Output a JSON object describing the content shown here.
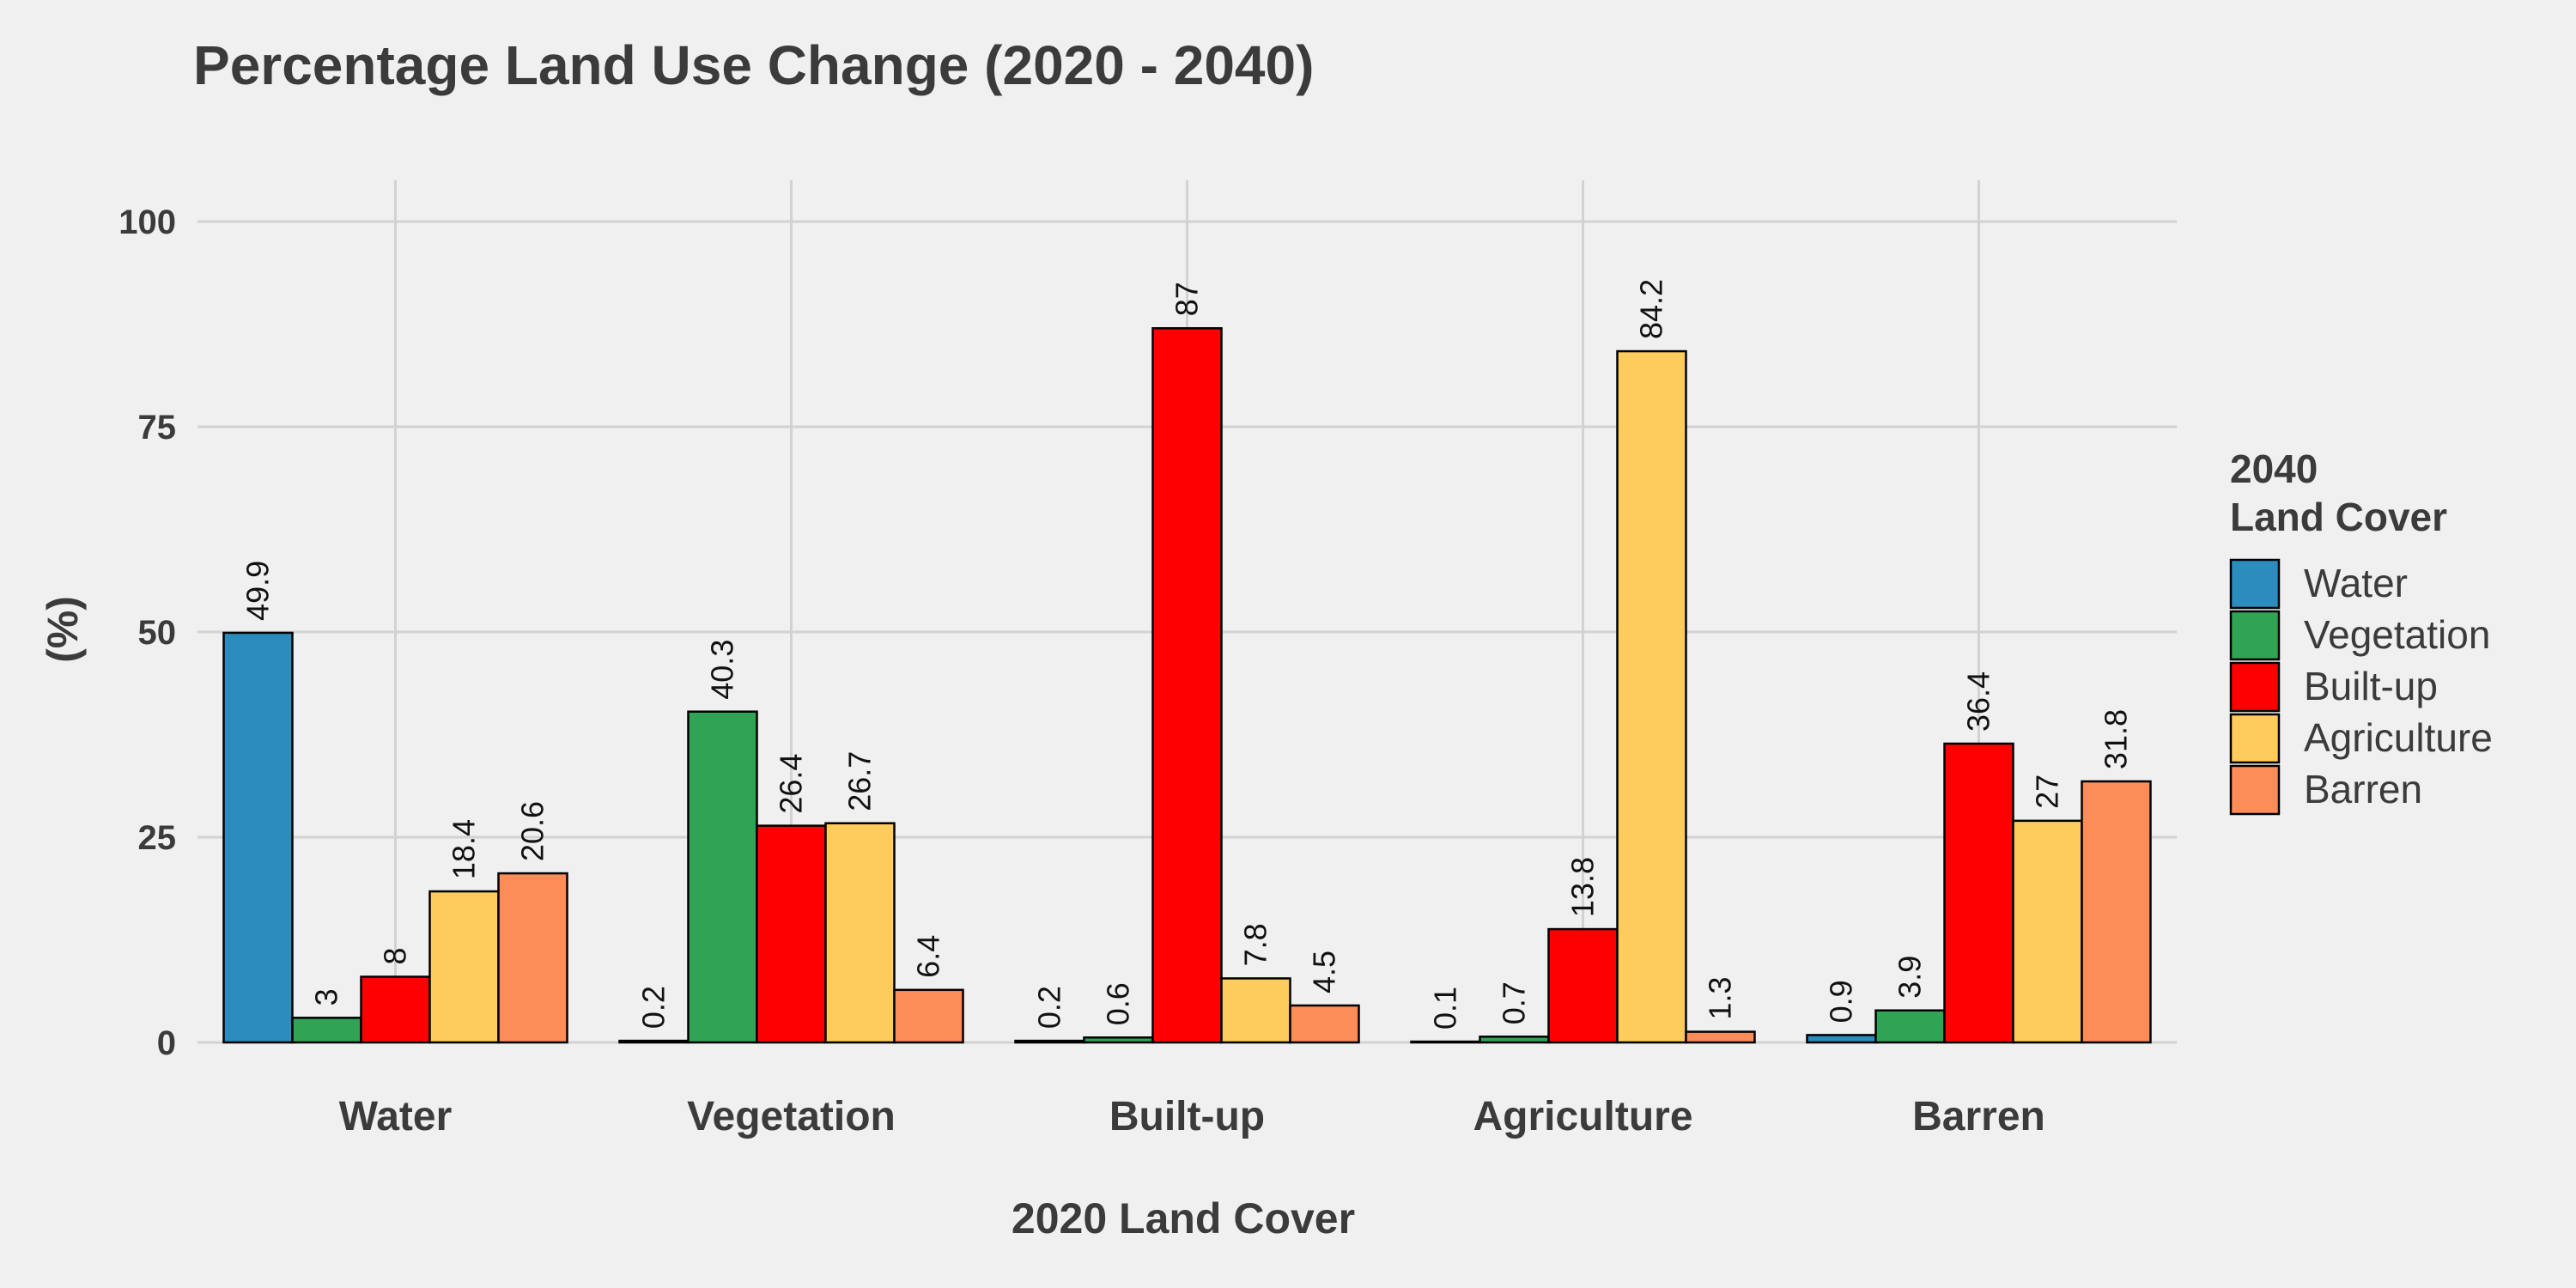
{
  "chart_data": {
    "type": "bar",
    "title": "Percentage Land Use Change (2020 - 2040)",
    "xlabel": "2020 Land Cover",
    "ylabel": "(%)",
    "ylim": [
      0,
      105
    ],
    "yticks": [
      0,
      25,
      50,
      75,
      100
    ],
    "grid": true,
    "legend": {
      "title_lines": [
        "2040",
        "Land Cover"
      ],
      "position": "right"
    },
    "categories": [
      "Water",
      "Vegetation",
      "Built-up",
      "Agriculture",
      "Barren"
    ],
    "series": [
      {
        "name": "Water",
        "color": "#2b8cbe",
        "values": [
          49.9,
          0.2,
          0.2,
          0.1,
          0.9
        ]
      },
      {
        "name": "Vegetation",
        "color": "#31a354",
        "values": [
          3,
          40.3,
          0.6,
          0.7,
          3.9
        ]
      },
      {
        "name": "Built-up",
        "color": "#ff0000",
        "values": [
          8,
          26.4,
          87,
          13.8,
          36.4
        ]
      },
      {
        "name": "Agriculture",
        "color": "#fecc5c",
        "values": [
          18.4,
          26.7,
          7.8,
          84.2,
          27
        ]
      },
      {
        "name": "Barren",
        "color": "#fc8d59",
        "values": [
          20.6,
          6.4,
          4.5,
          1.3,
          31.8
        ]
      }
    ],
    "data_labels": [
      [
        "49.9",
        "3",
        "8",
        "18.4",
        "20.6"
      ],
      [
        "0.2",
        "40.3",
        "26.4",
        "26.7",
        "6.4"
      ],
      [
        "0.2",
        "0.6",
        "87",
        "7.8",
        "4.5"
      ],
      [
        "0.1",
        "0.7",
        "13.8",
        "84.2",
        "1.3"
      ],
      [
        "0.9",
        "3.9",
        "36.4",
        "27",
        "31.8"
      ]
    ]
  }
}
